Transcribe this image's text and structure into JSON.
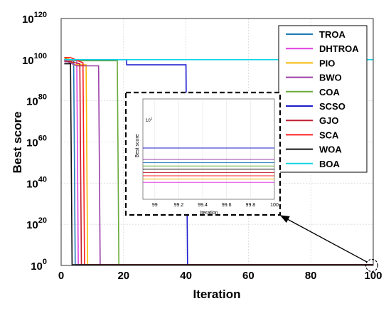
{
  "chart_data": {
    "type": "line",
    "xlabel": "Iteration",
    "ylabel": "Best score",
    "xlim": [
      0,
      100
    ],
    "ylim_log10": [
      0,
      120
    ],
    "y_scale": "log",
    "grid": true,
    "legend_position": "top-right",
    "x_ticks": [
      "0",
      "20",
      "40",
      "60",
      "80",
      "100"
    ],
    "y_ticks": [
      {
        "base": "10",
        "exp": "0"
      },
      {
        "base": "10",
        "exp": "20"
      },
      {
        "base": "10",
        "exp": "40"
      },
      {
        "base": "10",
        "exp": "60"
      },
      {
        "base": "10",
        "exp": "80"
      },
      {
        "base": "10",
        "exp": "100"
      },
      {
        "base": "10",
        "exp": "120"
      }
    ],
    "series": [
      {
        "name": "TROA",
        "color": "#1f7bb8",
        "x": [
          1,
          2,
          3,
          4,
          4.5,
          100
        ],
        "y_log10": [
          100,
          100,
          100,
          100,
          0.3,
          0.3
        ]
      },
      {
        "name": "DHTROA",
        "color": "#e040e0",
        "x": [
          1,
          2,
          3,
          5,
          5.5,
          100
        ],
        "y_log10": [
          100,
          100,
          99.5,
          99.5,
          0.3,
          0.3
        ]
      },
      {
        "name": "PIO",
        "color": "#f5b800",
        "x": [
          1,
          2,
          4,
          8,
          8.5,
          100
        ],
        "y_log10": [
          101,
          101,
          97.5,
          97.5,
          0.3,
          0.3
        ]
      },
      {
        "name": "BWO",
        "color": "#9b3fa8",
        "x": [
          1,
          2,
          5,
          12,
          12.5,
          100
        ],
        "y_log10": [
          99,
          99,
          97,
          97,
          0.3,
          0.3
        ]
      },
      {
        "name": "COA",
        "color": "#6aaa3a",
        "x": [
          1,
          2,
          5,
          18,
          18.5,
          100
        ],
        "y_log10": [
          101,
          100,
          99.5,
          99.5,
          0.3,
          0.3
        ]
      },
      {
        "name": "SCSO",
        "color": "#1c1ccf",
        "x": [
          1,
          21,
          21,
          40,
          40.5,
          100
        ],
        "y_log10": [
          100,
          100,
          97.5,
          97.5,
          0.3,
          0.3
        ]
      },
      {
        "name": "GJO",
        "color": "#c01f2f",
        "x": [
          1,
          3,
          6,
          6.5,
          100
        ],
        "y_log10": [
          99.5,
          99,
          98,
          0.3,
          0.3
        ]
      },
      {
        "name": "SCA",
        "color": "#ff2020",
        "x": [
          1,
          3,
          7,
          7.5,
          100
        ],
        "y_log10": [
          101,
          101,
          98.5,
          0.3,
          0.3
        ]
      },
      {
        "name": "WOA",
        "color": "#111111",
        "x": [
          1,
          3,
          3.5,
          100
        ],
        "y_log10": [
          98,
          98,
          0.3,
          0.3
        ]
      },
      {
        "name": "BOA",
        "color": "#11d4e6",
        "x": [
          1,
          100
        ],
        "y_log10": [
          100,
          100
        ]
      }
    ],
    "inset": {
      "xlabel": "Iteration",
      "ylabel": "Best score",
      "xlim": [
        98.9,
        100
      ],
      "x_ticks": [
        "99",
        "99.2",
        "99.4",
        "99.6",
        "99.8",
        "100"
      ],
      "y_tick": {
        "base": "10",
        "exp": "1"
      },
      "line_order_top_to_bottom": [
        "SCSO",
        "BWO",
        "TROA",
        "COA",
        "WOA",
        "GJO",
        "SCA",
        "PIO",
        "DHTROA"
      ]
    }
  }
}
